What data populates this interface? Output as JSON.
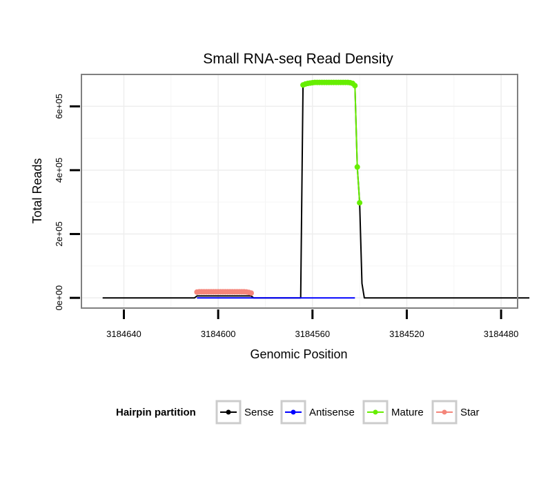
{
  "chart_data": {
    "type": "line",
    "title": "Small RNA-seq Read Density",
    "xlabel": "Genomic Position",
    "ylabel": "Total Reads",
    "x_reversed": true,
    "xlim": [
      3184658,
      3184473
    ],
    "ylim": [
      -32000,
      700000
    ],
    "x_ticks": [
      3184640,
      3184600,
      3184560,
      3184520,
      3184480
    ],
    "x_tick_labels": [
      "3184640",
      "3184600",
      "3184560",
      "3184520",
      "3184480"
    ],
    "y_ticks": [
      0,
      200000,
      400000,
      600000
    ],
    "y_tick_labels": [
      "0e+00",
      "2e+05",
      "4e+05",
      "6e+05"
    ],
    "grid": true,
    "legend": {
      "title": "Hairpin partition",
      "position": "bottom",
      "entries": [
        {
          "name": "Sense",
          "color": "#000000"
        },
        {
          "name": "Antisense",
          "color": "#0000ff"
        },
        {
          "name": "Mature",
          "color": "#66ee00"
        },
        {
          "name": "Star",
          "color": "#f4857a"
        }
      ]
    },
    "series": [
      {
        "name": "Sense",
        "color": "#000000",
        "style": "line",
        "points": [
          [
            3184649,
            0
          ],
          [
            3184610,
            0
          ],
          [
            3184609,
            6000
          ],
          [
            3184586,
            6000
          ],
          [
            3184585,
            0
          ],
          [
            3184565,
            0
          ],
          [
            3184564,
            670000
          ],
          [
            3184543,
            675000
          ],
          [
            3184542,
            665000
          ],
          [
            3184541,
            410000
          ],
          [
            3184540,
            300000
          ],
          [
            3184539,
            45000
          ],
          [
            3184538,
            0
          ],
          [
            3184468,
            0
          ]
        ]
      },
      {
        "name": "Antisense",
        "color": "#0000ff",
        "style": "line",
        "points": [
          [
            3184609,
            0
          ],
          [
            3184586,
            0
          ],
          [
            3184564,
            0
          ],
          [
            3184542,
            0
          ]
        ]
      },
      {
        "name": "Mature",
        "color": "#66ee00",
        "style": "line-points",
        "points": [
          [
            3184564,
            667000
          ],
          [
            3184563,
            670000
          ],
          [
            3184562,
            672000
          ],
          [
            3184561,
            673000
          ],
          [
            3184560,
            674000
          ],
          [
            3184559,
            675000
          ],
          [
            3184558,
            675000
          ],
          [
            3184557,
            675000
          ],
          [
            3184556,
            675000
          ],
          [
            3184555,
            675000
          ],
          [
            3184554,
            675000
          ],
          [
            3184553,
            675000
          ],
          [
            3184552,
            675000
          ],
          [
            3184551,
            675000
          ],
          [
            3184550,
            675000
          ],
          [
            3184549,
            675000
          ],
          [
            3184548,
            675000
          ],
          [
            3184547,
            675000
          ],
          [
            3184546,
            675000
          ],
          [
            3184545,
            675000
          ],
          [
            3184544,
            674000
          ],
          [
            3184543,
            672000
          ],
          [
            3184542,
            665000
          ],
          [
            3184541,
            410000
          ],
          [
            3184540,
            298000
          ]
        ]
      },
      {
        "name": "Star",
        "color": "#f4857a",
        "style": "line-points",
        "points": [
          [
            3184609,
            18000
          ],
          [
            3184608,
            19000
          ],
          [
            3184607,
            19000
          ],
          [
            3184606,
            19000
          ],
          [
            3184605,
            19000
          ],
          [
            3184604,
            19000
          ],
          [
            3184603,
            19000
          ],
          [
            3184602,
            19000
          ],
          [
            3184601,
            19000
          ],
          [
            3184600,
            19000
          ],
          [
            3184599,
            19000
          ],
          [
            3184598,
            19000
          ],
          [
            3184597,
            19000
          ],
          [
            3184596,
            19000
          ],
          [
            3184595,
            19000
          ],
          [
            3184594,
            19000
          ],
          [
            3184593,
            19000
          ],
          [
            3184592,
            19000
          ],
          [
            3184591,
            19000
          ],
          [
            3184590,
            19000
          ],
          [
            3184589,
            19000
          ],
          [
            3184588,
            18500
          ],
          [
            3184587,
            17000
          ],
          [
            3184586,
            15000
          ]
        ]
      }
    ]
  }
}
